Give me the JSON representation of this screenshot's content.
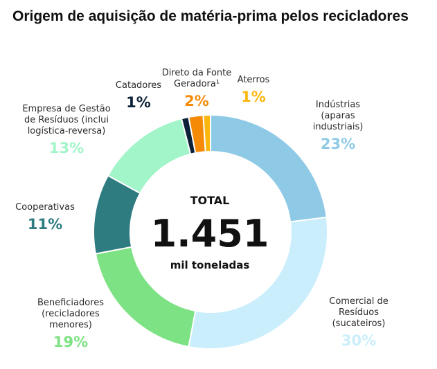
{
  "title": "Origem de aquisição de matéria-prima pelos recicladores",
  "center": {
    "label": "TOTAL",
    "value": "1.451",
    "unit": "mil toneladas"
  },
  "chart_data": {
    "type": "pie",
    "title": "Origem de aquisição de matéria-prima pelos recicladores",
    "total": "1.451 mil toneladas",
    "slices": [
      {
        "name": [
          "Indústrias",
          "(aparas",
          "industriais)"
        ],
        "pct_label": "23%",
        "value": 23,
        "color": "#8ecae6"
      },
      {
        "name": [
          "Comercial de",
          "Resíduos",
          "(sucateiros)"
        ],
        "pct_label": "30%",
        "value": 30,
        "color": "#caeefb"
      },
      {
        "name": [
          "Beneficiadores",
          "(recicladores",
          "menores)"
        ],
        "pct_label": "19%",
        "value": 19,
        "color": "#7de283"
      },
      {
        "name": [
          "Cooperativas"
        ],
        "pct_label": "11%",
        "value": 11,
        "color": "#2e7b80"
      },
      {
        "name": [
          "Empresa de Gestão",
          "de Resíduos (inclui",
          "logística-reversa)"
        ],
        "pct_label": "13%",
        "value": 13,
        "color": "#a2f5c9"
      },
      {
        "name": [
          "Catadores"
        ],
        "pct_label": "1%",
        "value": 1,
        "color": "#0d2238"
      },
      {
        "name": [
          "Direto da Fonte",
          "Geradora¹"
        ],
        "pct_label": "2%",
        "value": 2,
        "color": "#f58a07"
      },
      {
        "name": [
          "Aterros"
        ],
        "pct_label": "1%",
        "value": 1,
        "color": "#fbb70f"
      }
    ]
  }
}
